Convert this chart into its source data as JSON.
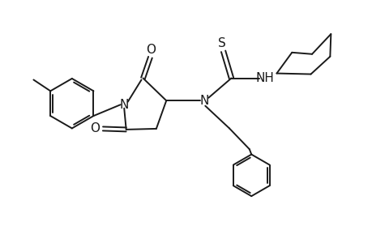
{
  "bg_color": "#ffffff",
  "line_color": "#1a1a1a",
  "lw": 1.4,
  "fs": 11,
  "figsize": [
    4.6,
    3.0
  ],
  "dpi": 100,
  "xlim": [
    0,
    9.2
  ],
  "ylim": [
    0,
    6.0
  ]
}
